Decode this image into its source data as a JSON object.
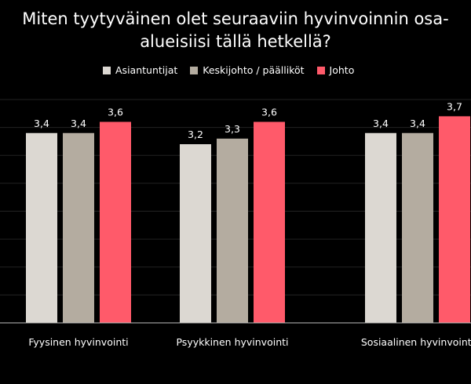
{
  "chart_data": {
    "type": "bar",
    "title_lines": [
      "Miten tyytyväinen olet seuraaviin hyvinvoinnin osa-",
      "alueisiisi tällä hetkellä?"
    ],
    "categories": [
      "Fyysinen hyvinvointi",
      "Psyykkinen hyvinvointi",
      "Sosiaalinen hyvinvointi"
    ],
    "series": [
      {
        "name": "Asiantuntijat",
        "color": "#dcd8d2",
        "values": [
          3.4,
          3.2,
          3.4
        ],
        "labels": [
          "3,4",
          "3,2",
          "3,4"
        ]
      },
      {
        "name": "Keskijohto / päälliköt",
        "color": "#b4aca0",
        "values": [
          3.4,
          3.3,
          3.4
        ],
        "labels": [
          "3,4",
          "3,3",
          "3,4"
        ]
      },
      {
        "name": "Johto",
        "color": "#ff5a6a",
        "values": [
          3.6,
          3.6,
          3.7
        ],
        "labels": [
          "3,6",
          "3,6",
          "3,7"
        ]
      }
    ],
    "ylim": [
      0,
      4
    ],
    "grid": true,
    "legend_position": "top"
  }
}
